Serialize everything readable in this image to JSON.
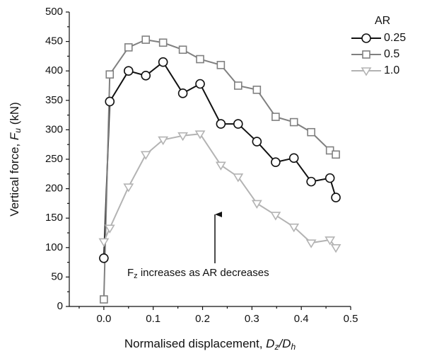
{
  "chart_data": {
    "type": "line",
    "x_label": [
      "Normalised displacement, ",
      "D",
      "z",
      "/",
      "D",
      "h"
    ],
    "y_label": [
      "Vertical force, ",
      "F",
      "u",
      " (kN)"
    ],
    "legend_title": "AR",
    "legend": "upper right",
    "annotation": [
      "F",
      "z",
      " increases as AR decreases"
    ],
    "xlim": [
      -0.07,
      0.5
    ],
    "xticks": [
      {
        "value": 0,
        "label": "0.0"
      },
      0.1,
      0.2,
      0.3,
      0.4,
      0.5
    ],
    "ylim": [
      0,
      500
    ],
    "yticks": [
      0,
      50,
      100,
      150,
      200,
      250,
      300,
      350,
      400,
      450,
      500
    ],
    "series": [
      {
        "name": "0.25",
        "color": "#111111",
        "marker": "circle",
        "x": [
          0,
          0.012,
          0.05,
          0.085,
          0.12,
          0.16,
          0.195,
          0.237,
          0.272,
          0.31,
          0.348,
          0.385,
          0.42,
          0.458,
          0.47
        ],
        "values": [
          82,
          348,
          400,
          392,
          415,
          362,
          378,
          310,
          310,
          280,
          245,
          252,
          212,
          218,
          185
        ]
      },
      {
        "name": "0.5",
        "color": "#808080",
        "marker": "square",
        "x": [
          0,
          0.012,
          0.05,
          0.085,
          0.12,
          0.16,
          0.195,
          0.237,
          0.272,
          0.31,
          0.348,
          0.385,
          0.42,
          0.458,
          0.47
        ],
        "values": [
          12,
          394,
          440,
          453,
          448,
          436,
          420,
          410,
          375,
          368,
          322,
          313,
          296,
          265,
          258
        ]
      },
      {
        "name": "1.0",
        "color": "#b3b3b3",
        "marker": "triangle",
        "x": [
          0,
          0.012,
          0.05,
          0.085,
          0.12,
          0.16,
          0.195,
          0.237,
          0.272,
          0.31,
          0.348,
          0.385,
          0.42,
          0.458,
          0.47
        ],
        "values": [
          110,
          133,
          203,
          258,
          283,
          290,
          293,
          240,
          220,
          175,
          155,
          135,
          108,
          113,
          100
        ]
      }
    ]
  }
}
